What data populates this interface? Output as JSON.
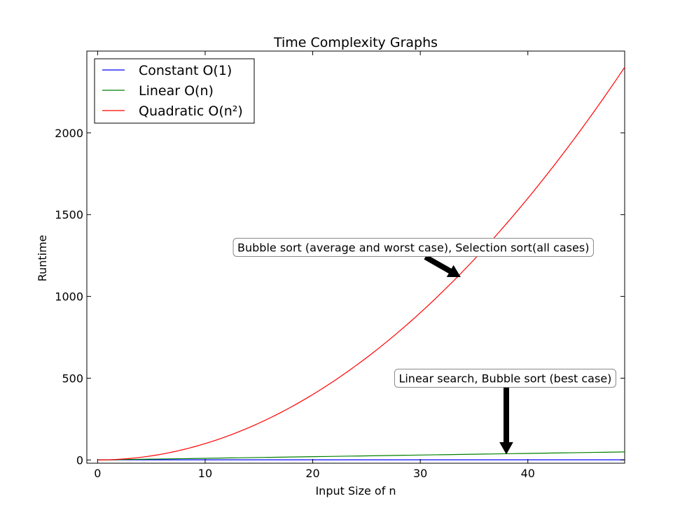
{
  "chart_data": {
    "type": "line",
    "title": "Time Complexity Graphs",
    "xlabel": "Input Size of n",
    "ylabel": "Runtime",
    "xlim": [
      -1,
      49
    ],
    "ylim": [
      -20,
      2500
    ],
    "xticks": [
      0,
      10,
      20,
      30,
      40
    ],
    "yticks": [
      0,
      500,
      1000,
      1500,
      2000
    ],
    "legend_position": "upper-left",
    "series": [
      {
        "name": "Constant O(1)",
        "color": "#0000ff",
        "formula": "constant",
        "x_range": [
          0,
          49
        ]
      },
      {
        "name": "Linear O(n)",
        "color": "#008000",
        "formula": "linear",
        "x_range": [
          0,
          49
        ]
      },
      {
        "name": "Quadratic O(n²)",
        "color": "#ff0000",
        "formula": "quadratic",
        "x_range": [
          0,
          49
        ]
      }
    ],
    "annotations": [
      {
        "text": "Bubble sort (average and worst case), Selection sort(all cases)",
        "text_x": 13,
        "text_y": 1300,
        "arrow_from_x": 30.5,
        "arrow_from_y": 1240,
        "arrow_to_x": 33.7,
        "arrow_to_y": 1120
      },
      {
        "text": "Linear search, Bubble sort (best case)",
        "text_x": 28,
        "text_y": 500,
        "arrow_from_x": 38,
        "arrow_from_y": 445,
        "arrow_to_x": 38,
        "arrow_to_y": 38
      }
    ]
  }
}
